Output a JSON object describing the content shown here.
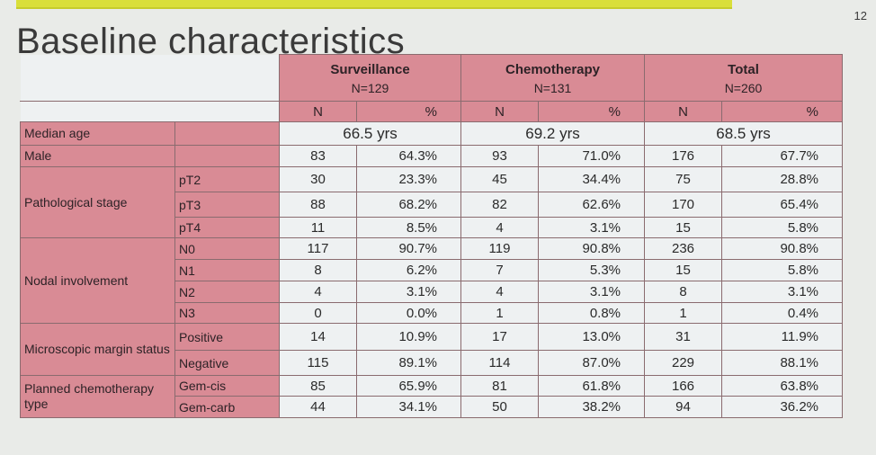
{
  "slide_number": "12",
  "title": "Baseline characteristics",
  "groups": [
    {
      "name": "Surveillance",
      "n": "N=129"
    },
    {
      "name": "Chemotherapy",
      "n": "N=131"
    },
    {
      "name": "Total",
      "n": "N=260"
    }
  ],
  "subheaders": {
    "n": "N",
    "pct": "%"
  },
  "median_age": {
    "label": "Median age",
    "values": [
      "66.5 yrs",
      "69.2 yrs",
      "68.5 yrs"
    ]
  },
  "male": {
    "label": "Male",
    "values": [
      "83",
      "64.3%",
      "93",
      "71.0%",
      "176",
      "67.7%"
    ]
  },
  "path_stage": {
    "label": "Pathological stage",
    "rows": [
      {
        "sub": "pT2",
        "values": [
          "30",
          "23.3%",
          "45",
          "34.4%",
          "75",
          "28.8%"
        ]
      },
      {
        "sub": "pT3",
        "values": [
          "88",
          "68.2%",
          "82",
          "62.6%",
          "170",
          "65.4%"
        ]
      },
      {
        "sub": "pT4",
        "values": [
          "11",
          "8.5%",
          "4",
          "3.1%",
          "15",
          "5.8%"
        ]
      }
    ]
  },
  "nodal": {
    "label": "Nodal involvement",
    "rows": [
      {
        "sub": "N0",
        "values": [
          "117",
          "90.7%",
          "119",
          "90.8%",
          "236",
          "90.8%"
        ]
      },
      {
        "sub": "N1",
        "values": [
          "8",
          "6.2%",
          "7",
          "5.3%",
          "15",
          "5.8%"
        ]
      },
      {
        "sub": "N2",
        "values": [
          "4",
          "3.1%",
          "4",
          "3.1%",
          "8",
          "3.1%"
        ]
      },
      {
        "sub": "N3",
        "values": [
          "0",
          "0.0%",
          "1",
          "0.8%",
          "1",
          "0.4%"
        ]
      }
    ]
  },
  "margin": {
    "label": "Microscopic margin status",
    "rows": [
      {
        "sub": "Positive",
        "values": [
          "14",
          "10.9%",
          "17",
          "13.0%",
          "31",
          "11.9%"
        ]
      },
      {
        "sub": "Negative",
        "values": [
          "115",
          "89.1%",
          "114",
          "87.0%",
          "229",
          "88.1%"
        ]
      }
    ]
  },
  "chemo_type": {
    "label": "Planned chemotherapy type",
    "rows": [
      {
        "sub": "Gem-cis",
        "values": [
          "85",
          "65.9%",
          "81",
          "61.8%",
          "166",
          "63.8%"
        ]
      },
      {
        "sub": "Gem-carb",
        "values": [
          "44",
          "34.1%",
          "50",
          "38.2%",
          "94",
          "36.2%"
        ]
      }
    ]
  },
  "colors": {
    "header_rose": "#d98b95",
    "background": "#e9ebe8",
    "accent_bar": "#d9df3a"
  }
}
